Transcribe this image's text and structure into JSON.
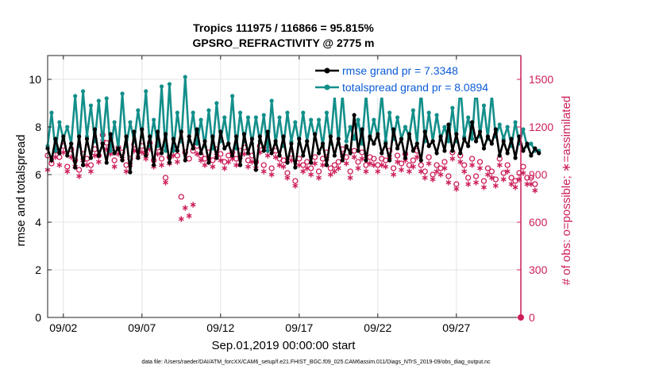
{
  "chart_data": {
    "type": "line",
    "title": "Tropics 111975 / 116866 = 95.815%",
    "subtitle": "GPSRO_REFRACTIVITY @ 2775 m",
    "xlabel": "Sep.01,2019 00:00:00 start",
    "ylabel": "rmse and totalspread",
    "y2label": "# of obs: o=possible; ∗=assimilated",
    "footnote": "data file: /Users/raeder/DAI/ATM_forcXX/CAM6_setup/f.e21.FHIST_BGC.f09_025.CAM6assim.011/Diags_NTrS_2019-09/obs_diag_output.nc",
    "xlim": [
      0.5,
      30.6
    ],
    "ylim": [
      0,
      11
    ],
    "y2lim": [
      0,
      1650
    ],
    "x_ticks": [
      1.5,
      6.5,
      11.5,
      16.5,
      21.5,
      26.5
    ],
    "x_tick_labels": [
      "09/02",
      "09/07",
      "09/12",
      "09/17",
      "09/22",
      "09/27"
    ],
    "y_ticks": [
      0,
      2,
      4,
      6,
      8,
      10
    ],
    "y_tick_labels": [
      "0",
      "2",
      "4",
      "6",
      "8",
      "10"
    ],
    "y2_ticks": [
      0,
      300,
      600,
      900,
      1200,
      1500
    ],
    "y2_tick_labels": [
      "0",
      "300",
      "600",
      "900",
      "1200",
      "1500"
    ],
    "x_start": 0.5,
    "x_step": 0.25,
    "legend_position": "top-right",
    "series": [
      {
        "name": "rmse grand pr = 7.3348",
        "axis": "left",
        "color": "#000000",
        "marker": "dot",
        "values": [
          7.1,
          6.6,
          7.5,
          6.9,
          7.6,
          6.8,
          7.3,
          6.3,
          7.6,
          6.4,
          7.5,
          6.7,
          7.9,
          6.8,
          7.3,
          6.5,
          7.7,
          6.9,
          7.1,
          6.6,
          7.6,
          6.1,
          7.8,
          6.7,
          7.9,
          6.8,
          7.6,
          6.4,
          7.8,
          6.9,
          7.7,
          6.5,
          7.5,
          7.0,
          7.8,
          6.6,
          7.6,
          7.1,
          7.9,
          6.9,
          7.4,
          6.5,
          7.6,
          6.7,
          7.8,
          7.1,
          7.3,
          6.8,
          7.6,
          6.4,
          7.7,
          6.9,
          7.5,
          6.2,
          7.6,
          7.0,
          7.8,
          6.9,
          7.4,
          6.8,
          7.6,
          6.5,
          7.3,
          6.3,
          7.5,
          6.8,
          7.4,
          6.5,
          7.7,
          6.9,
          7.3,
          6.4,
          7.6,
          6.8,
          7.5,
          6.6,
          7.2,
          6.9,
          8.5,
          7.0,
          7.9,
          6.6,
          7.6,
          7.3,
          7.7,
          6.9,
          7.3,
          6.6,
          7.9,
          7.1,
          7.5,
          6.7,
          7.7,
          7.0,
          7.3,
          6.6,
          7.8,
          7.2,
          7.4,
          6.9,
          7.6,
          7.0,
          8.1,
          7.0,
          7.7,
          6.9,
          7.5,
          7.2,
          8.2,
          7.4,
          7.8,
          7.1,
          7.6,
          7.3,
          7.9,
          6.8,
          7.4,
          6.9,
          7.5,
          6.7,
          7.6,
          7.0,
          7.3,
          6.8,
          7.1,
          6.9
        ]
      },
      {
        "name": "totalspread grand pr = 8.0894",
        "axis": "left",
        "color": "#138f8a",
        "marker": "dot",
        "values": [
          7.2,
          8.6,
          7.0,
          8.2,
          7.5,
          8.0,
          7.3,
          9.3,
          7.2,
          9.5,
          7.6,
          8.9,
          7.4,
          9.1,
          7.3,
          9.2,
          7.0,
          8.2,
          7.1,
          9.4,
          7.2,
          8.2,
          7.4,
          8.7,
          7.6,
          9.5,
          7.2,
          8.3,
          7.2,
          9.7,
          7.0,
          9.8,
          7.0,
          8.6,
          7.4,
          10.1,
          7.4,
          8.6,
          7.3,
          8.3,
          7.2,
          8.7,
          7.1,
          9.0,
          7.4,
          8.4,
          7.3,
          9.3,
          7.1,
          8.6,
          7.4,
          8.4,
          7.3,
          8.4,
          7.4,
          8.5,
          7.0,
          9.1,
          7.3,
          8.4,
          7.2,
          8.6,
          7.4,
          8.2,
          7.3,
          8.6,
          7.4,
          8.3,
          7.5,
          8.3,
          7.2,
          8.6,
          7.3,
          9.3,
          7.3,
          9.4,
          7.4,
          8.0,
          7.5,
          8.3,
          7.3,
          9.4,
          7.5,
          8.3,
          7.6,
          9.4,
          7.4,
          8.6,
          7.5,
          8.4,
          7.5,
          8.0,
          7.6,
          8.7,
          7.3,
          9.6,
          7.4,
          8.6,
          7.4,
          8.5,
          7.5,
          8.0,
          7.4,
          8.8,
          7.4,
          9.8,
          7.6,
          8.4,
          7.5,
          9.8,
          7.6,
          8.9,
          7.5,
          9.4,
          7.6,
          8.1,
          7.5,
          8.0,
          7.2,
          8.2,
          7.3,
          7.9,
          7.2,
          7.3,
          7.0,
          7.0
        ]
      },
      {
        "name": "possible obs",
        "axis": "right",
        "color": "#cc1f5a",
        "marker": "circle",
        "values": [
          1020,
          970,
          1050,
          1010,
          1080,
          950,
          1060,
          990,
          930,
          1030,
          1000,
          960,
          1060,
          1020,
          1150,
          1100,
          1060,
          990,
          1070,
          1040,
          960,
          1000,
          1090,
          1050,
          1080,
          1030,
          1100,
          990,
          1070,
          1000,
          880,
          1010,
          1060,
          1020,
          760,
          1040,
          1000,
          1050,
          1080,
          1020,
          1000,
          1040,
          990,
          1060,
          1030,
          980,
          1020,
          1040,
          1000,
          1050,
          1070,
          990,
          1020,
          980,
          1080,
          960,
          1060,
          940,
          1050,
          1000,
          990,
          910,
          1030,
          860,
          1000,
          960,
          980,
          940,
          1010,
          920,
          1000,
          1040,
          940,
          960,
          980,
          1060,
          1010,
          920,
          1050,
          980,
          1040,
          960,
          1010,
          1000,
          960,
          1000,
          990,
          1050,
          940,
          1020,
          970,
          1030,
          960,
          990,
          1050,
          960,
          920,
          1010,
          900,
          960,
          940,
          980,
          890,
          1040,
          840,
          1020,
          960,
          880,
          1000,
          890,
          980,
          860,
          940,
          920,
          870,
          1000,
          910,
          960,
          880,
          860,
          910,
          950,
          880,
          880,
          840
        ]
      },
      {
        "name": "assimilated obs",
        "axis": "right",
        "color": "#cc1f5a",
        "marker": "asterisk",
        "values": [
          930,
          990,
          1010,
          960,
          1040,
          920,
          1010,
          950,
          890,
          990,
          960,
          920,
          1020,
          980,
          1110,
          1060,
          1030,
          950,
          1030,
          1000,
          920,
          960,
          1050,
          1010,
          1040,
          1000,
          1060,
          950,
          1030,
          960,
          850,
          970,
          1020,
          980,
          620,
          690,
          640,
          710,
          1030,
          990,
          960,
          1000,
          950,
          1020,
          990,
          940,
          980,
          1000,
          960,
          1010,
          1030,
          950,
          980,
          940,
          1040,
          920,
          1020,
          900,
          1010,
          960,
          950,
          880,
          990,
          830,
          960,
          920,
          940,
          900,
          970,
          880,
          960,
          1000,
          900,
          920,
          940,
          1020,
          970,
          880,
          1010,
          940,
          1000,
          920,
          970,
          960,
          920,
          960,
          950,
          1010,
          900,
          980,
          930,
          990,
          920,
          950,
          1010,
          920,
          880,
          970,
          870,
          920,
          900,
          940,
          850,
          1000,
          810,
          980,
          920,
          840,
          960,
          850,
          940,
          820,
          900,
          880,
          830,
          960,
          870,
          920,
          840,
          820,
          870,
          910,
          840,
          840,
          800
        ]
      }
    ]
  }
}
